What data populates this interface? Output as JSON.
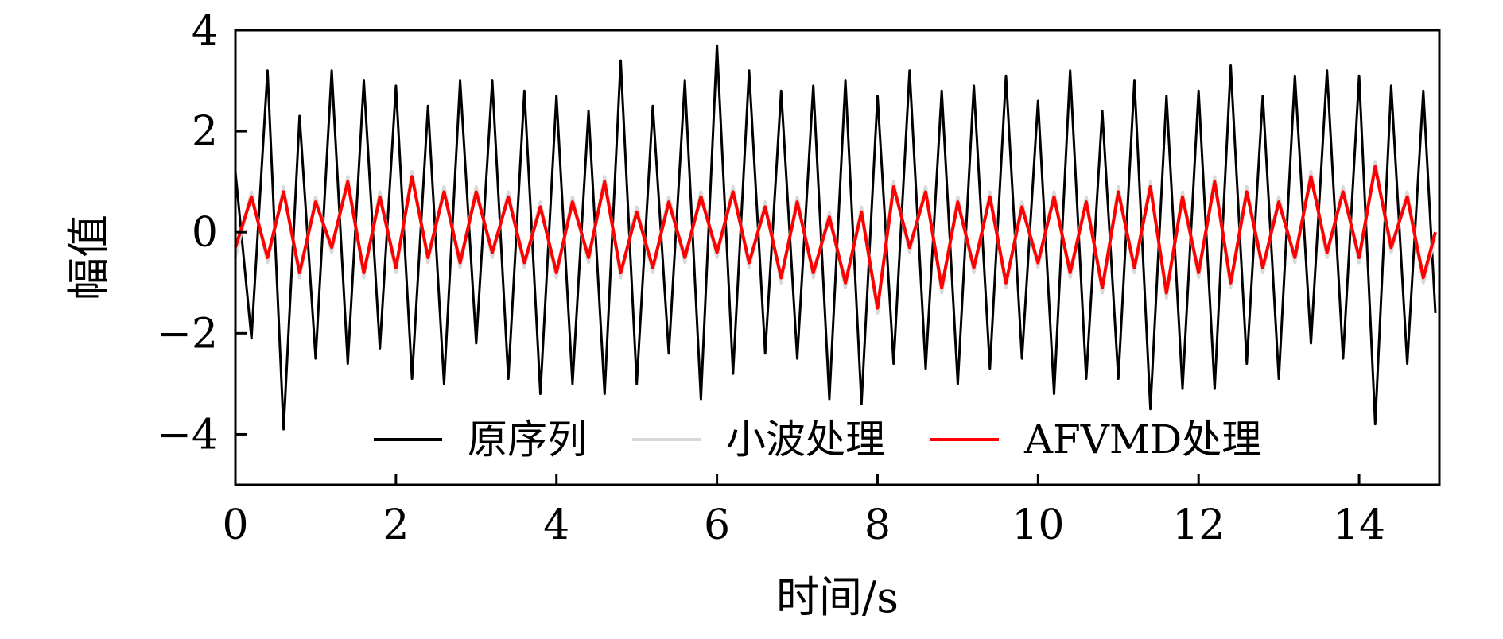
{
  "chart_data": {
    "type": "line",
    "xlabel": "时间/s",
    "ylabel": "幅值",
    "xlim": [
      0,
      15
    ],
    "ylim": [
      -5,
      4
    ],
    "xticks": [
      0,
      2,
      4,
      6,
      8,
      10,
      12,
      14
    ],
    "xtick_labels": [
      "0",
      "2",
      "4",
      "6",
      "8",
      "10",
      "12",
      "14"
    ],
    "yticks": [
      4,
      2,
      0,
      -2,
      -4
    ],
    "ytick_labels": [
      "4",
      "2",
      "0",
      "−2",
      "−4"
    ],
    "grid": false,
    "legend": {
      "position": "lower-center",
      "columns": 3
    },
    "series": [
      {
        "name": "原序列",
        "color": "#000000",
        "x": [
          0.0,
          0.2,
          0.4,
          0.6,
          0.8,
          1.0,
          1.2,
          1.4,
          1.6,
          1.8,
          2.0,
          2.2,
          2.4,
          2.6,
          2.8,
          3.0,
          3.2,
          3.4,
          3.6,
          3.8,
          4.0,
          4.2,
          4.4,
          4.6,
          4.8,
          5.0,
          5.2,
          5.4,
          5.6,
          5.8,
          6.0,
          6.2,
          6.4,
          6.6,
          6.8,
          7.0,
          7.2,
          7.4,
          7.6,
          7.8,
          8.0,
          8.2,
          8.4,
          8.6,
          8.8,
          9.0,
          9.2,
          9.4,
          9.6,
          9.8,
          10.0,
          10.2,
          10.4,
          10.6,
          10.8,
          11.0,
          11.2,
          11.4,
          11.6,
          11.8,
          12.0,
          12.2,
          12.4,
          12.6,
          12.8,
          13.0,
          13.2,
          13.4,
          13.6,
          13.8,
          14.0,
          14.2,
          14.4,
          14.6,
          14.8,
          14.95
        ],
        "y": [
          1.2,
          -2.1,
          3.2,
          -3.9,
          2.3,
          -2.5,
          3.2,
          -2.6,
          3.0,
          -2.3,
          2.9,
          -2.9,
          2.5,
          -3.0,
          3.0,
          -2.2,
          3.0,
          -2.9,
          2.8,
          -3.2,
          2.7,
          -3.0,
          2.4,
          -3.2,
          3.4,
          -3.0,
          2.5,
          -2.4,
          3.0,
          -3.3,
          3.7,
          -2.8,
          3.2,
          -2.4,
          2.8,
          -2.5,
          2.9,
          -3.3,
          3.0,
          -3.4,
          2.7,
          -2.6,
          3.2,
          -2.7,
          2.8,
          -3.0,
          2.9,
          -2.7,
          3.1,
          -2.5,
          2.6,
          -3.2,
          3.2,
          -2.9,
          2.4,
          -2.9,
          3.0,
          -3.5,
          2.7,
          -3.1,
          2.8,
          -3.1,
          3.3,
          -2.6,
          2.7,
          -2.9,
          3.1,
          -2.2,
          3.2,
          -2.5,
          3.1,
          -3.8,
          2.9,
          -2.6,
          2.8,
          -1.6
        ]
      },
      {
        "name": "小波处理",
        "color": "#d9d9d9",
        "x": [
          0.0,
          0.2,
          0.4,
          0.6,
          0.8,
          1.0,
          1.2,
          1.4,
          1.6,
          1.8,
          2.0,
          2.2,
          2.4,
          2.6,
          2.8,
          3.0,
          3.2,
          3.4,
          3.6,
          3.8,
          4.0,
          4.2,
          4.4,
          4.6,
          4.8,
          5.0,
          5.2,
          5.4,
          5.6,
          5.8,
          6.0,
          6.2,
          6.4,
          6.6,
          6.8,
          7.0,
          7.2,
          7.4,
          7.6,
          7.8,
          8.0,
          8.2,
          8.4,
          8.6,
          8.8,
          9.0,
          9.2,
          9.4,
          9.6,
          9.8,
          10.0,
          10.2,
          10.4,
          10.6,
          10.8,
          11.0,
          11.2,
          11.4,
          11.6,
          11.8,
          12.0,
          12.2,
          12.4,
          12.6,
          12.8,
          13.0,
          13.2,
          13.4,
          13.6,
          13.8,
          14.0,
          14.2,
          14.4,
          14.6,
          14.8,
          14.95
        ],
        "y": [
          -0.5,
          0.8,
          -0.6,
          0.9,
          -0.9,
          0.7,
          -0.4,
          1.1,
          -0.9,
          0.8,
          -0.8,
          1.2,
          -0.6,
          0.9,
          -0.7,
          0.9,
          -0.5,
          0.8,
          -0.7,
          0.6,
          -0.9,
          0.7,
          -0.6,
          1.1,
          -0.9,
          0.5,
          -0.8,
          0.7,
          -0.6,
          0.8,
          -0.5,
          0.9,
          -0.7,
          0.6,
          -1.0,
          0.7,
          -0.9,
          0.4,
          -1.1,
          0.5,
          -1.6,
          1.0,
          -0.4,
          0.9,
          -1.2,
          0.7,
          -0.8,
          0.8,
          -1.1,
          0.6,
          -0.7,
          0.8,
          -0.9,
          0.7,
          -1.2,
          0.9,
          -0.8,
          1.0,
          -1.3,
          0.8,
          -0.9,
          1.1,
          -1.1,
          0.9,
          -0.8,
          0.7,
          -0.6,
          1.2,
          -0.5,
          0.9,
          -0.6,
          1.4,
          -0.4,
          0.8,
          -1.0,
          -0.1
        ]
      },
      {
        "name": "AFVMD处理",
        "color": "#ff0000",
        "x": [
          0.0,
          0.2,
          0.4,
          0.6,
          0.8,
          1.0,
          1.2,
          1.4,
          1.6,
          1.8,
          2.0,
          2.2,
          2.4,
          2.6,
          2.8,
          3.0,
          3.2,
          3.4,
          3.6,
          3.8,
          4.0,
          4.2,
          4.4,
          4.6,
          4.8,
          5.0,
          5.2,
          5.4,
          5.6,
          5.8,
          6.0,
          6.2,
          6.4,
          6.6,
          6.8,
          7.0,
          7.2,
          7.4,
          7.6,
          7.8,
          8.0,
          8.2,
          8.4,
          8.6,
          8.8,
          9.0,
          9.2,
          9.4,
          9.6,
          9.8,
          10.0,
          10.2,
          10.4,
          10.6,
          10.8,
          11.0,
          11.2,
          11.4,
          11.6,
          11.8,
          12.0,
          12.2,
          12.4,
          12.6,
          12.8,
          13.0,
          13.2,
          13.4,
          13.6,
          13.8,
          14.0,
          14.2,
          14.4,
          14.6,
          14.8,
          14.95
        ],
        "y": [
          -0.3,
          0.7,
          -0.5,
          0.8,
          -0.8,
          0.6,
          -0.3,
          1.0,
          -0.8,
          0.7,
          -0.7,
          1.1,
          -0.5,
          0.8,
          -0.6,
          0.8,
          -0.4,
          0.7,
          -0.6,
          0.5,
          -0.8,
          0.6,
          -0.5,
          1.0,
          -0.8,
          0.4,
          -0.7,
          0.6,
          -0.5,
          0.7,
          -0.4,
          0.8,
          -0.6,
          0.5,
          -0.9,
          0.6,
          -0.8,
          0.3,
          -1.0,
          0.4,
          -1.5,
          0.9,
          -0.3,
          0.8,
          -1.1,
          0.6,
          -0.7,
          0.7,
          -1.0,
          0.5,
          -0.6,
          0.7,
          -0.8,
          0.6,
          -1.1,
          0.8,
          -0.7,
          0.9,
          -1.2,
          0.7,
          -0.8,
          1.0,
          -1.0,
          0.8,
          -0.7,
          0.6,
          -0.5,
          1.1,
          -0.4,
          0.8,
          -0.5,
          1.3,
          -0.3,
          0.7,
          -0.9,
          0.0
        ]
      }
    ]
  }
}
